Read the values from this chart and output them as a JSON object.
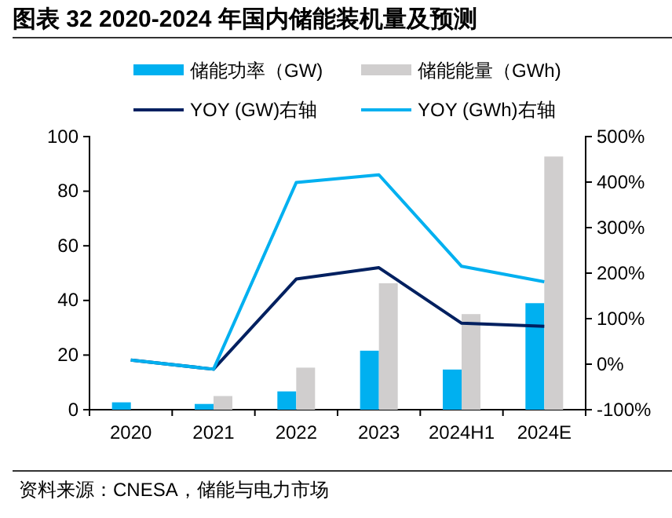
{
  "chart_data": {
    "type": "bar",
    "title": "图表 32 2020-2024 年国内储能装机量及预测",
    "categories": [
      "2020",
      "2021",
      "2022",
      "2023",
      "2024H1",
      "2024E"
    ],
    "series": [
      {
        "name": "储能功率（GW)",
        "color": "#00b0f0",
        "values": [
          2.7,
          2.1,
          6.7,
          21.6,
          14.7,
          39
        ]
      },
      {
        "name": "储能能量（GWh)",
        "color": "#d0cece",
        "values": [
          null,
          5.0,
          15.4,
          46.3,
          35,
          92.7
        ]
      },
      {
        "name": "YOY (GW)右轴",
        "type": "line",
        "axis": "y2",
        "color": "#002060",
        "values": [
          9,
          -11,
          187,
          212,
          90,
          83
        ]
      },
      {
        "name": "YOY (GWh)右轴",
        "type": "line",
        "axis": "y2",
        "color": "#00b0f0",
        "values": [
          9,
          -11,
          399,
          416,
          215,
          181
        ]
      }
    ],
    "ylim": [
      0,
      100
    ],
    "yticks": [
      0,
      20,
      40,
      60,
      80,
      100
    ],
    "y2lim": [
      -100,
      500
    ],
    "y2ticks": [
      {
        "value": -100,
        "label": "-100%"
      },
      {
        "value": 0,
        "label": "0%"
      },
      {
        "value": 100,
        "label": "100%"
      },
      {
        "value": 200,
        "label": "200%"
      },
      {
        "value": 300,
        "label": "300%"
      },
      {
        "value": 400,
        "label": "400%"
      },
      {
        "value": 500,
        "label": "500%"
      }
    ],
    "legend": "top",
    "grid": false,
    "line_style": "solid",
    "marker": "none",
    "annotations": [
      "资料来源：CNESA，储能与电力市场"
    ]
  }
}
